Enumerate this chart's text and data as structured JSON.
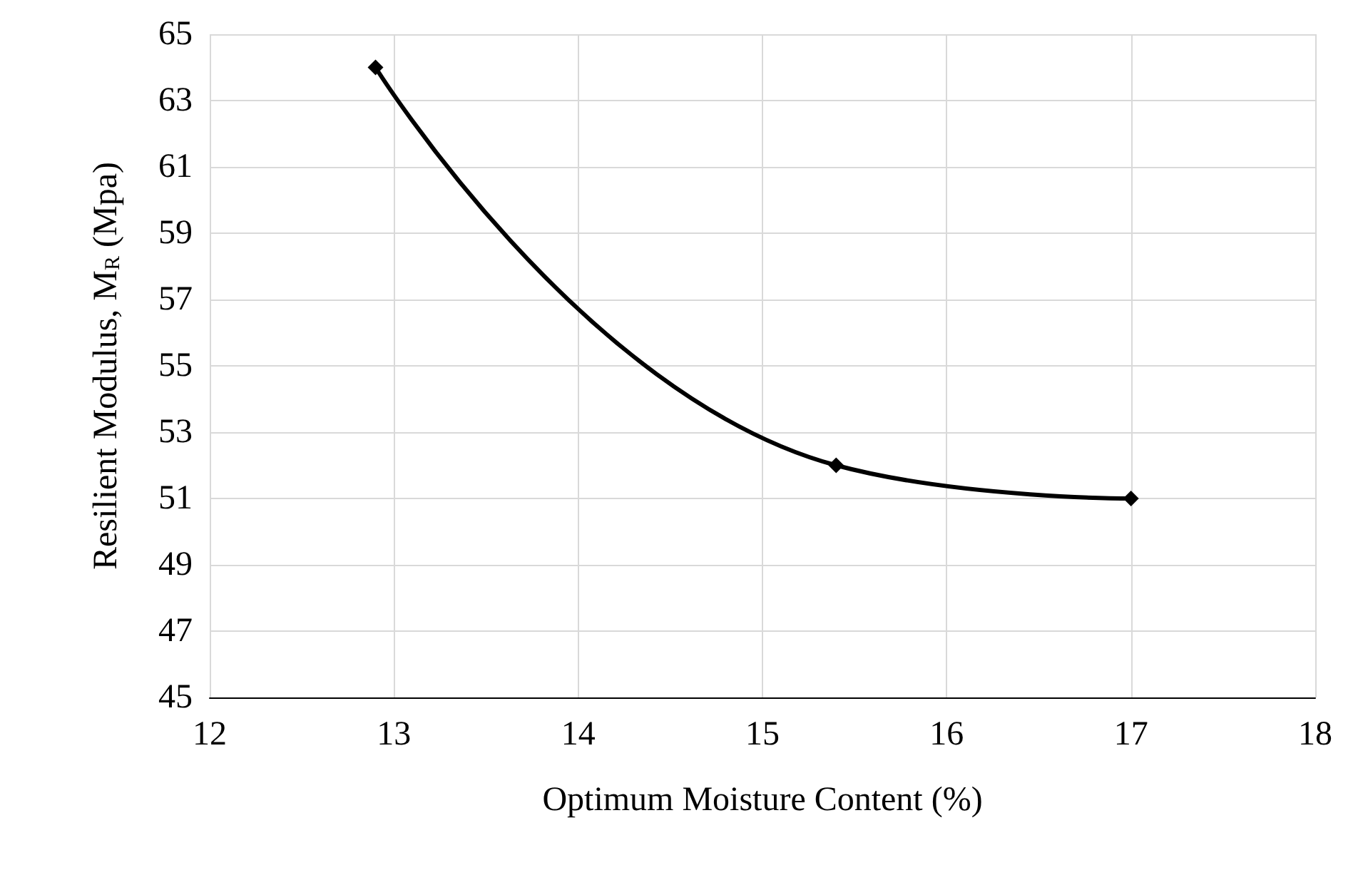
{
  "chart_data": {
    "type": "line",
    "xlabel": "Optimum Moisture Content (%)",
    "ylabel": "Resilient Modulus, M$_{R}$ (Mpa)",
    "series": [
      {
        "color": "#000000",
        "x": [
          12.9,
          15.4,
          17
        ],
        "values": [
          64,
          52,
          51
        ]
      }
    ],
    "xlim": [
      12,
      18
    ],
    "xticks": [
      12,
      13,
      14,
      15,
      16,
      17,
      18
    ],
    "ylim": [
      45,
      65
    ],
    "yticks": [
      45,
      47,
      49,
      51,
      53,
      55,
      57,
      59,
      61,
      63,
      65
    ],
    "grid": true,
    "marker": "diamond",
    "line_style": "solid"
  }
}
